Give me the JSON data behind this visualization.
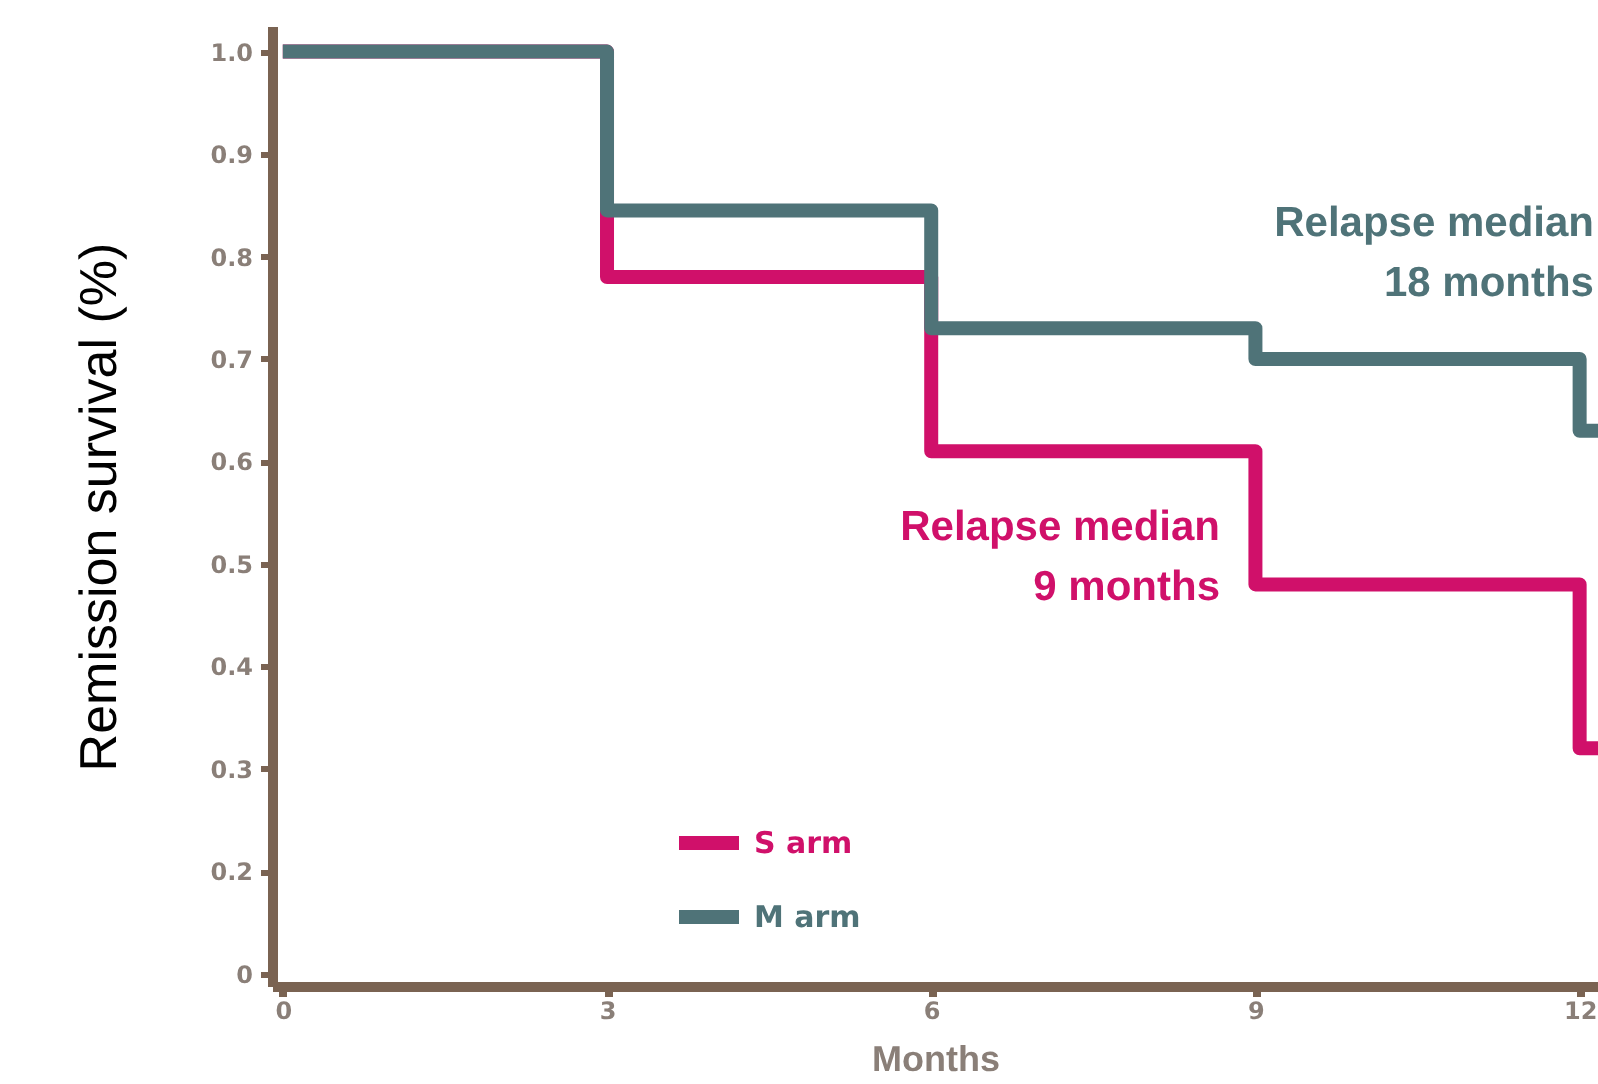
{
  "chart_data": {
    "type": "step",
    "xlabel": "Months",
    "ylabel": "Remission survival (%)",
    "x": [
      0,
      3,
      6,
      9,
      12,
      12.17
    ],
    "series": [
      {
        "name": "S arm",
        "color": "#d0106a",
        "values": [
          1.0,
          0.78,
          0.61,
          0.48,
          0.32,
          0.32
        ]
      },
      {
        "name": "M arm",
        "color": "#4f7378",
        "values": [
          1.0,
          0.845,
          0.73,
          0.7,
          0.63,
          0.63
        ]
      }
    ],
    "xlim": [
      -0.1,
      12.17
    ],
    "xticks": [
      0,
      3,
      6,
      9,
      12
    ],
    "ylim": [
      0.088,
      1.025
    ],
    "yticks": [
      {
        "value": 0.1,
        "label": "0"
      },
      0.2,
      0.3,
      0.4,
      0.5,
      0.6,
      0.7,
      0.8,
      0.9,
      {
        "value": 1.0,
        "label": "1.0"
      }
    ],
    "annotations": [
      "Relapse median\n9 months",
      "Relapse median\n18 months"
    ],
    "legend": "bottom left",
    "grid": false
  }
}
